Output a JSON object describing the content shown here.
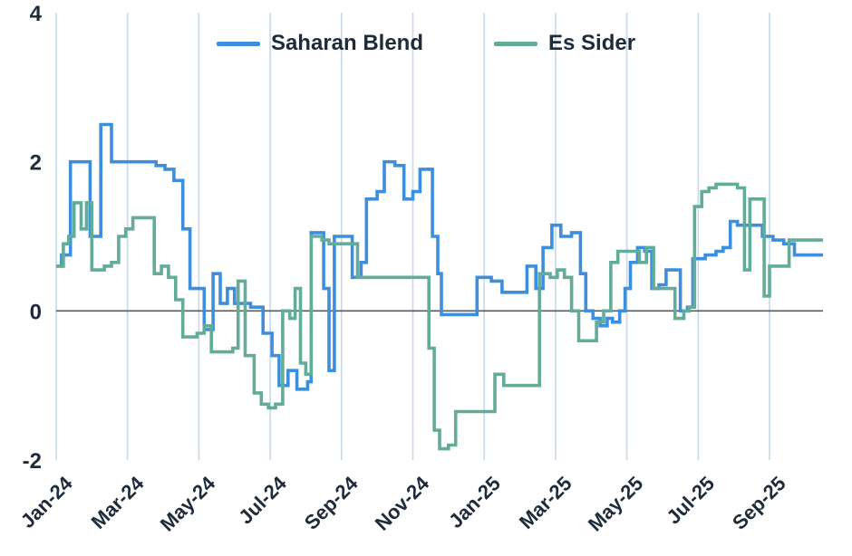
{
  "chart_data": {
    "type": "line",
    "step": "after",
    "title": "",
    "xlabel": "",
    "ylabel": "",
    "xlim": [
      0,
      21.5
    ],
    "ylim": [
      -2,
      4
    ],
    "grid": "vertical",
    "legend_position": "top-center",
    "colors": {
      "grid": "#c9dbe9",
      "zero_line": "#55585c",
      "tick_text": "#1e2b3a",
      "background": "#ffffff"
    },
    "x_ticks": [
      {
        "pos": 0,
        "label": "Jan-24"
      },
      {
        "pos": 2,
        "label": "Mar-24"
      },
      {
        "pos": 4,
        "label": "May-24"
      },
      {
        "pos": 6,
        "label": "Jul-24"
      },
      {
        "pos": 8,
        "label": "Sep-24"
      },
      {
        "pos": 10,
        "label": "Nov-24"
      },
      {
        "pos": 12,
        "label": "Jan-25"
      },
      {
        "pos": 14,
        "label": "Mar-25"
      },
      {
        "pos": 16,
        "label": "May-25"
      },
      {
        "pos": 18,
        "label": "Jul-25"
      },
      {
        "pos": 20,
        "label": "Sep-25"
      }
    ],
    "y_ticks": [
      {
        "pos": -2,
        "label": "-2"
      },
      {
        "pos": 0,
        "label": "0"
      },
      {
        "pos": 2,
        "label": "2"
      },
      {
        "pos": 4,
        "label": "4"
      }
    ],
    "series": [
      {
        "name": "Saharan Blend",
        "color": "#3e8ede",
        "points": [
          [
            0,
            0.6
          ],
          [
            0.15,
            0.75
          ],
          [
            0.4,
            2
          ],
          [
            0.95,
            1
          ],
          [
            1.25,
            2.5
          ],
          [
            1.55,
            2
          ],
          [
            2.8,
            1.95
          ],
          [
            3.05,
            1.9
          ],
          [
            3.3,
            1.75
          ],
          [
            3.55,
            1.1
          ],
          [
            3.75,
            0.3
          ],
          [
            4.15,
            -0.25
          ],
          [
            4.4,
            0.5
          ],
          [
            4.6,
            0.1
          ],
          [
            4.8,
            0.3
          ],
          [
            5,
            0.1
          ],
          [
            5.45,
            0.05
          ],
          [
            5.8,
            -0.3
          ],
          [
            6.05,
            -0.6
          ],
          [
            6.25,
            -1
          ],
          [
            6.5,
            -0.8
          ],
          [
            6.75,
            -1.05
          ],
          [
            7.05,
            -0.95
          ],
          [
            7.15,
            1.05
          ],
          [
            7.5,
            0.3
          ],
          [
            7.65,
            -0.8
          ],
          [
            7.8,
            1
          ],
          [
            8.3,
            0.45
          ],
          [
            8.55,
            0.65
          ],
          [
            8.7,
            1.5
          ],
          [
            9,
            1.6
          ],
          [
            9.2,
            2
          ],
          [
            9.5,
            1.95
          ],
          [
            9.75,
            1.5
          ],
          [
            10,
            1.6
          ],
          [
            10.2,
            1.9
          ],
          [
            10.55,
            1
          ],
          [
            10.7,
            0.5
          ],
          [
            10.8,
            -0.05
          ],
          [
            11.8,
            0.45
          ],
          [
            12.2,
            0.4
          ],
          [
            12.5,
            0.25
          ],
          [
            13.2,
            0.6
          ],
          [
            13.45,
            0.3
          ],
          [
            13.65,
            0.85
          ],
          [
            13.9,
            1.15
          ],
          [
            14.15,
            1
          ],
          [
            14.45,
            1.05
          ],
          [
            14.7,
            0.5
          ],
          [
            14.85,
            0
          ],
          [
            15.05,
            -0.1
          ],
          [
            15.25,
            -0.2
          ],
          [
            15.45,
            -0.1
          ],
          [
            15.6,
            -0.15
          ],
          [
            15.8,
            0
          ],
          [
            15.95,
            0.3
          ],
          [
            16.1,
            0.65
          ],
          [
            16.3,
            0.85
          ],
          [
            16.5,
            0.8
          ],
          [
            16.7,
            0.3
          ],
          [
            16.9,
            0.35
          ],
          [
            17.1,
            0.55
          ],
          [
            17.5,
            0
          ],
          [
            17.7,
            0.05
          ],
          [
            17.85,
            0.7
          ],
          [
            18.2,
            0.75
          ],
          [
            18.5,
            0.8
          ],
          [
            18.7,
            0.85
          ],
          [
            18.9,
            1.2
          ],
          [
            19.1,
            1.15
          ],
          [
            19.8,
            1
          ],
          [
            20.1,
            0.95
          ],
          [
            20.4,
            0.9
          ],
          [
            20.7,
            0.75
          ],
          [
            21.5,
            0.75
          ]
        ]
      },
      {
        "name": "Es Sider",
        "color": "#62ac99",
        "points": [
          [
            0,
            0.6
          ],
          [
            0.2,
            0.9
          ],
          [
            0.35,
            1
          ],
          [
            0.5,
            1.45
          ],
          [
            0.7,
            1.1
          ],
          [
            0.85,
            1.45
          ],
          [
            1,
            0.55
          ],
          [
            1.35,
            0.6
          ],
          [
            1.55,
            0.65
          ],
          [
            1.75,
            1
          ],
          [
            1.95,
            1.1
          ],
          [
            2.15,
            1.25
          ],
          [
            2.55,
            1.25
          ],
          [
            2.75,
            0.5
          ],
          [
            2.95,
            0.6
          ],
          [
            3.15,
            0.45
          ],
          [
            3.35,
            0.15
          ],
          [
            3.55,
            -0.35
          ],
          [
            3.95,
            -0.3
          ],
          [
            4.15,
            -0.2
          ],
          [
            4.35,
            -0.55
          ],
          [
            4.75,
            -0.55
          ],
          [
            4.95,
            -0.5
          ],
          [
            5.1,
            0.4
          ],
          [
            5.3,
            -0.6
          ],
          [
            5.55,
            -1.1
          ],
          [
            5.75,
            -1.25
          ],
          [
            5.95,
            -1.3
          ],
          [
            6.15,
            -1.25
          ],
          [
            6.35,
            0
          ],
          [
            6.55,
            -0.1
          ],
          [
            6.7,
            0.3
          ],
          [
            6.85,
            -0.7
          ],
          [
            7,
            -0.85
          ],
          [
            7.15,
            1
          ],
          [
            7.45,
            0.95
          ],
          [
            7.65,
            0.9
          ],
          [
            8.15,
            0.9
          ],
          [
            8.45,
            0.45
          ],
          [
            10.45,
            -0.5
          ],
          [
            10.6,
            -1.6
          ],
          [
            10.75,
            -1.85
          ],
          [
            11,
            -1.8
          ],
          [
            11.2,
            -1.35
          ],
          [
            12.3,
            -0.85
          ],
          [
            12.55,
            -1
          ],
          [
            13.4,
            -1
          ],
          [
            13.55,
            0.5
          ],
          [
            13.85,
            0.45
          ],
          [
            14.05,
            0.55
          ],
          [
            14.25,
            0.45
          ],
          [
            14.45,
            0
          ],
          [
            14.65,
            -0.4
          ],
          [
            15.15,
            -0.15
          ],
          [
            15.35,
            0
          ],
          [
            15.55,
            0.65
          ],
          [
            15.75,
            0.8
          ],
          [
            16.35,
            0.65
          ],
          [
            16.55,
            0.85
          ],
          [
            16.75,
            0.3
          ],
          [
            17.35,
            -0.1
          ],
          [
            17.6,
            0
          ],
          [
            17.75,
            0.05
          ],
          [
            17.9,
            1.4
          ],
          [
            18.1,
            1.6
          ],
          [
            18.3,
            1.65
          ],
          [
            18.5,
            1.7
          ],
          [
            19.1,
            1.65
          ],
          [
            19.3,
            0.55
          ],
          [
            19.45,
            1.5
          ],
          [
            19.85,
            0.2
          ],
          [
            20,
            0.6
          ],
          [
            20.55,
            0.95
          ],
          [
            21.5,
            0.95
          ]
        ]
      }
    ]
  }
}
